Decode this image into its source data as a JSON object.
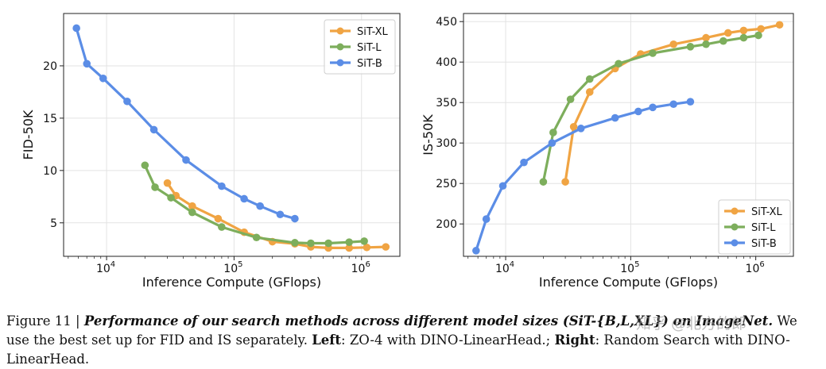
{
  "chart_data": [
    {
      "type": "line",
      "title": "",
      "xlabel": "Inference Compute (GFlops)",
      "ylabel": "FID-50K",
      "xscale": "log",
      "xlim": [
        4600,
        2000000
      ],
      "ylim": [
        1.8,
        25
      ],
      "xticks": [
        {
          "value": 10000,
          "base": "10",
          "exp": "4"
        },
        {
          "value": 100000,
          "base": "10",
          "exp": "5"
        },
        {
          "value": 1000000,
          "base": "10",
          "exp": "6"
        }
      ],
      "yticks": [
        5,
        10,
        15,
        20
      ],
      "legend_position": "top-right",
      "series": [
        {
          "name": "SiT-XL",
          "color": "#f0a443",
          "x": [
            30000,
            35000,
            47000,
            75000,
            120000,
            200000,
            300000,
            400000,
            550000,
            800000,
            1100000,
            1550000
          ],
          "y": [
            8.8,
            7.6,
            6.6,
            5.4,
            4.1,
            3.2,
            3.0,
            2.7,
            2.6,
            2.6,
            2.65,
            2.7
          ]
        },
        {
          "name": "SiT-L",
          "color": "#7dae5c",
          "x": [
            20000,
            24000,
            32000,
            47000,
            80000,
            150000,
            300000,
            400000,
            550000,
            800000,
            1050000
          ],
          "y": [
            10.5,
            8.4,
            7.4,
            6.0,
            4.6,
            3.6,
            3.1,
            3.05,
            3.05,
            3.15,
            3.25
          ]
        },
        {
          "name": "SiT-B",
          "color": "#5b8de6",
          "x": [
            5800,
            7000,
            9400,
            14500,
            23500,
            42000,
            80000,
            120000,
            160000,
            230000,
            300000
          ],
          "y": [
            23.6,
            20.2,
            18.8,
            16.6,
            13.9,
            11.0,
            8.5,
            7.3,
            6.6,
            5.8,
            5.4
          ]
        }
      ]
    },
    {
      "type": "line",
      "title": "",
      "xlabel": "Inference Compute (GFlops)",
      "ylabel": "IS-50K",
      "xscale": "log",
      "xlim": [
        4600,
        2000000
      ],
      "ylim": [
        160,
        460
      ],
      "xticks": [
        {
          "value": 10000,
          "base": "10",
          "exp": "4"
        },
        {
          "value": 100000,
          "base": "10",
          "exp": "5"
        },
        {
          "value": 1000000,
          "base": "10",
          "exp": "6"
        }
      ],
      "yticks": [
        200,
        250,
        300,
        350,
        400,
        450
      ],
      "legend_position": "bottom-right",
      "series": [
        {
          "name": "SiT-XL",
          "color": "#f0a443",
          "x": [
            30000,
            35000,
            47000,
            75000,
            120000,
            220000,
            400000,
            600000,
            800000,
            1100000,
            1550000
          ],
          "y": [
            252,
            320,
            363,
            392,
            410,
            422,
            430,
            436,
            439,
            441,
            446
          ]
        },
        {
          "name": "SiT-L",
          "color": "#7dae5c",
          "x": [
            20000,
            24000,
            33000,
            47000,
            80000,
            150000,
            300000,
            400000,
            550000,
            800000,
            1050000
          ],
          "y": [
            252,
            313,
            354,
            379,
            398,
            411,
            419,
            422,
            426,
            430,
            433
          ]
        },
        {
          "name": "SiT-B",
          "color": "#5b8de6",
          "x": [
            5800,
            7000,
            9500,
            14000,
            23500,
            40000,
            75000,
            115000,
            150000,
            220000,
            300000
          ],
          "y": [
            167,
            206,
            247,
            276,
            300,
            318,
            331,
            339,
            344,
            348,
            351
          ]
        }
      ]
    }
  ],
  "caption": {
    "label": "Figure 11 |",
    "emph": "Performance of our search methods across different model sizes (SiT-{B,L,XL}) on ImageNet.",
    "mid": " We use the best set up for FID and IS separately. ",
    "left_label": "Left",
    "left_text": ": ZO-4 with DINO-LinearHead.; ",
    "right_label": "Right",
    "right_text": ": Random Search with DINO-LinearHead."
  },
  "watermark": "知乎 @北方的郎"
}
